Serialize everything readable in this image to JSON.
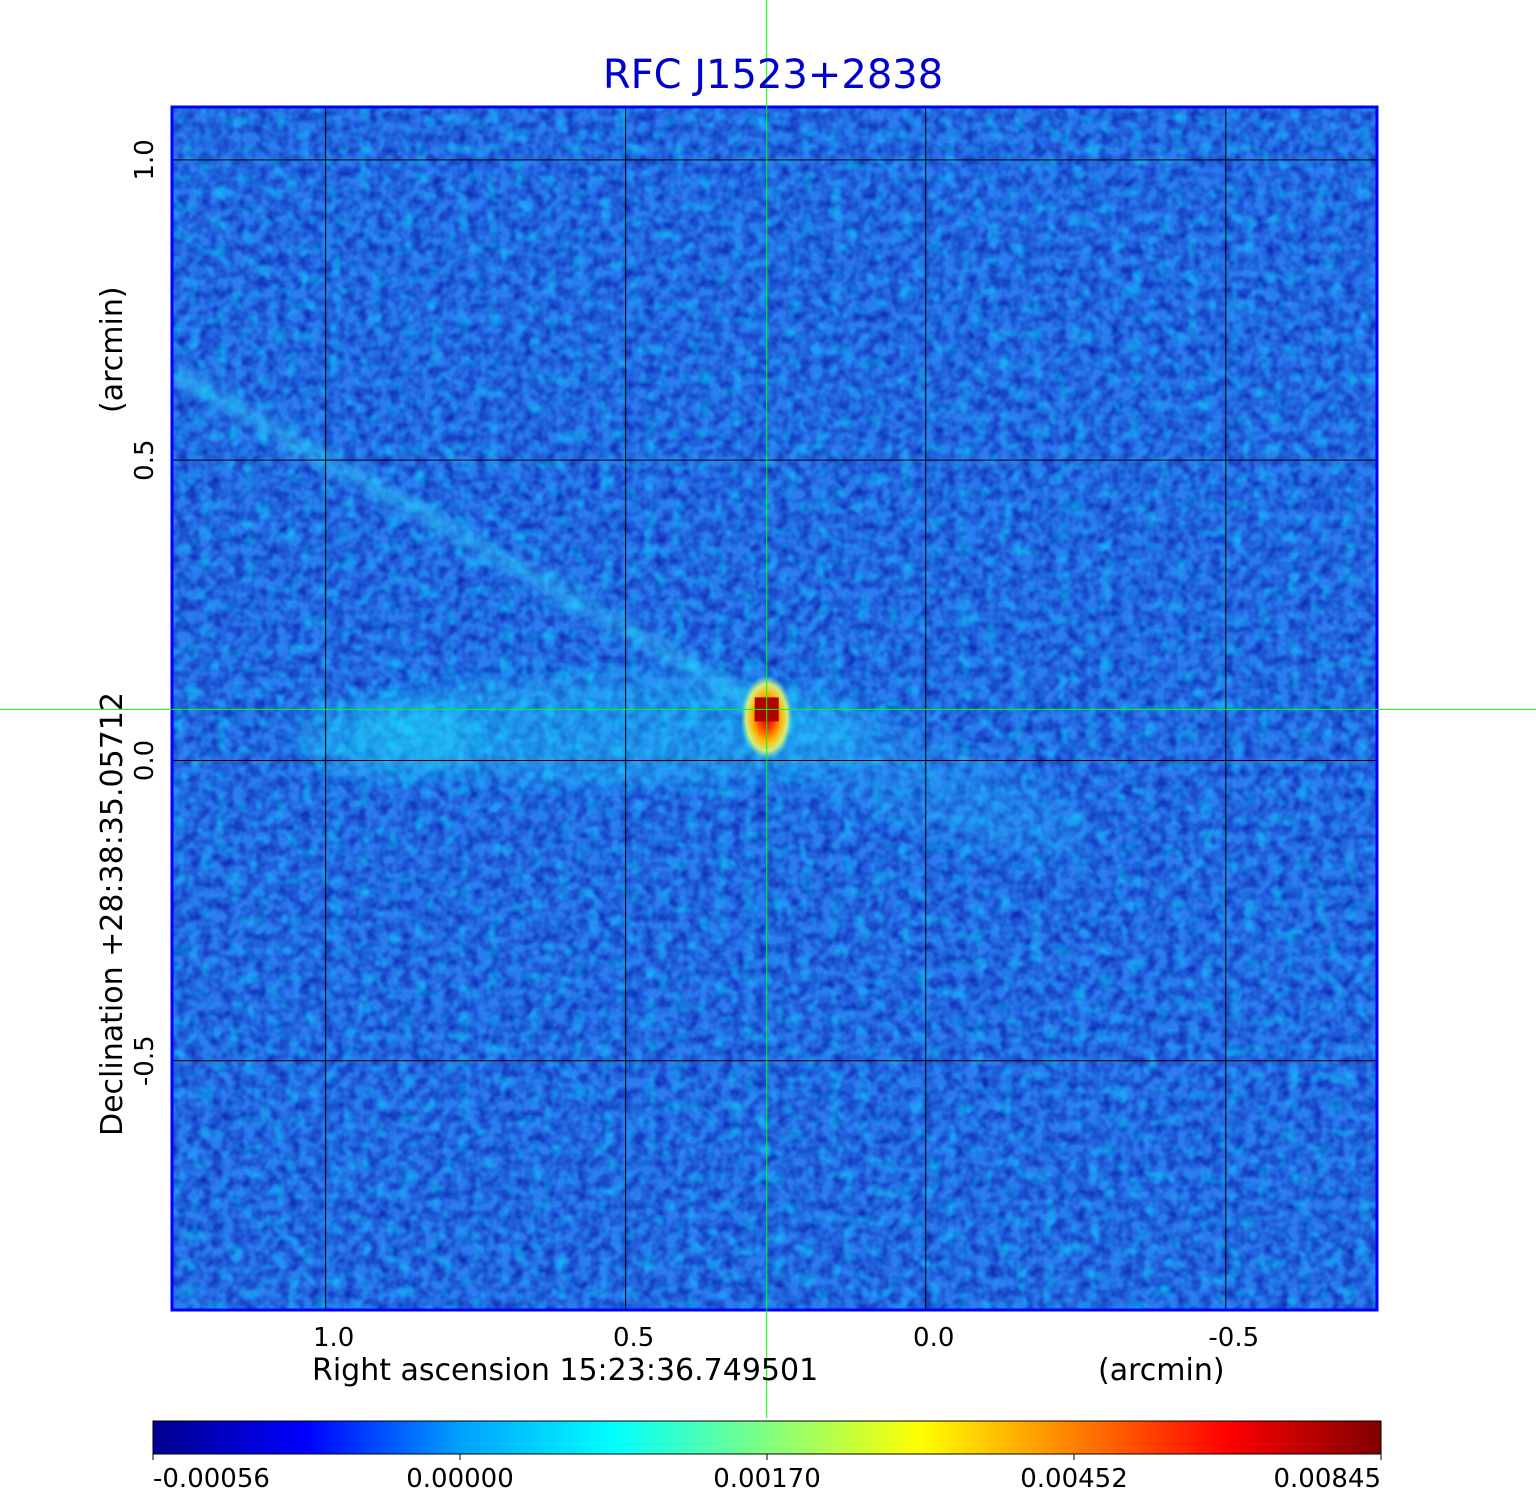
{
  "chart_data": {
    "type": "heatmap",
    "title": "RFC J1523+2838",
    "xlabel": "Right ascension  15:23:36.749501",
    "xunit": "(arcmin)",
    "ylabel": "Declination  +28:38:35.05712",
    "yunit": "(arcmin)",
    "x_ticks": [
      1.0,
      0.5,
      0.0,
      -0.5
    ],
    "x_tick_labels": [
      "1.0",
      "0.5",
      "0.0",
      "-0.5"
    ],
    "y_ticks": [
      1.0,
      0.5,
      0.0,
      -0.5
    ],
    "y_tick_labels": [
      "1.0",
      "0.5",
      "0.0",
      "-0.5"
    ],
    "xlim": [
      1.256,
      -0.752
    ],
    "ylim": [
      -0.915,
      1.088
    ],
    "x_reversed": true,
    "grid": true,
    "crosshair": {
      "x": 0.265,
      "y": 0.085
    },
    "peak": {
      "x": 0.265,
      "y": 0.085,
      "value": 0.00845
    },
    "colorbar": {
      "labels": [
        "-0.00056",
        "0.00000",
        "0.00170",
        "0.00452",
        "0.00845"
      ],
      "values": [
        -0.00056,
        0.0,
        0.0017,
        0.00452,
        0.00845
      ],
      "colormap": "jet",
      "colors": [
        "#00008f",
        "#0000ff",
        "#00a0ff",
        "#00ffff",
        "#80ff80",
        "#ffff00",
        "#ff8000",
        "#ff0000",
        "#800000"
      ]
    }
  },
  "colors": {
    "title": "#0000cc",
    "frame": "#0000ff",
    "grid": "#000000",
    "crosshair": "#00ff00"
  }
}
